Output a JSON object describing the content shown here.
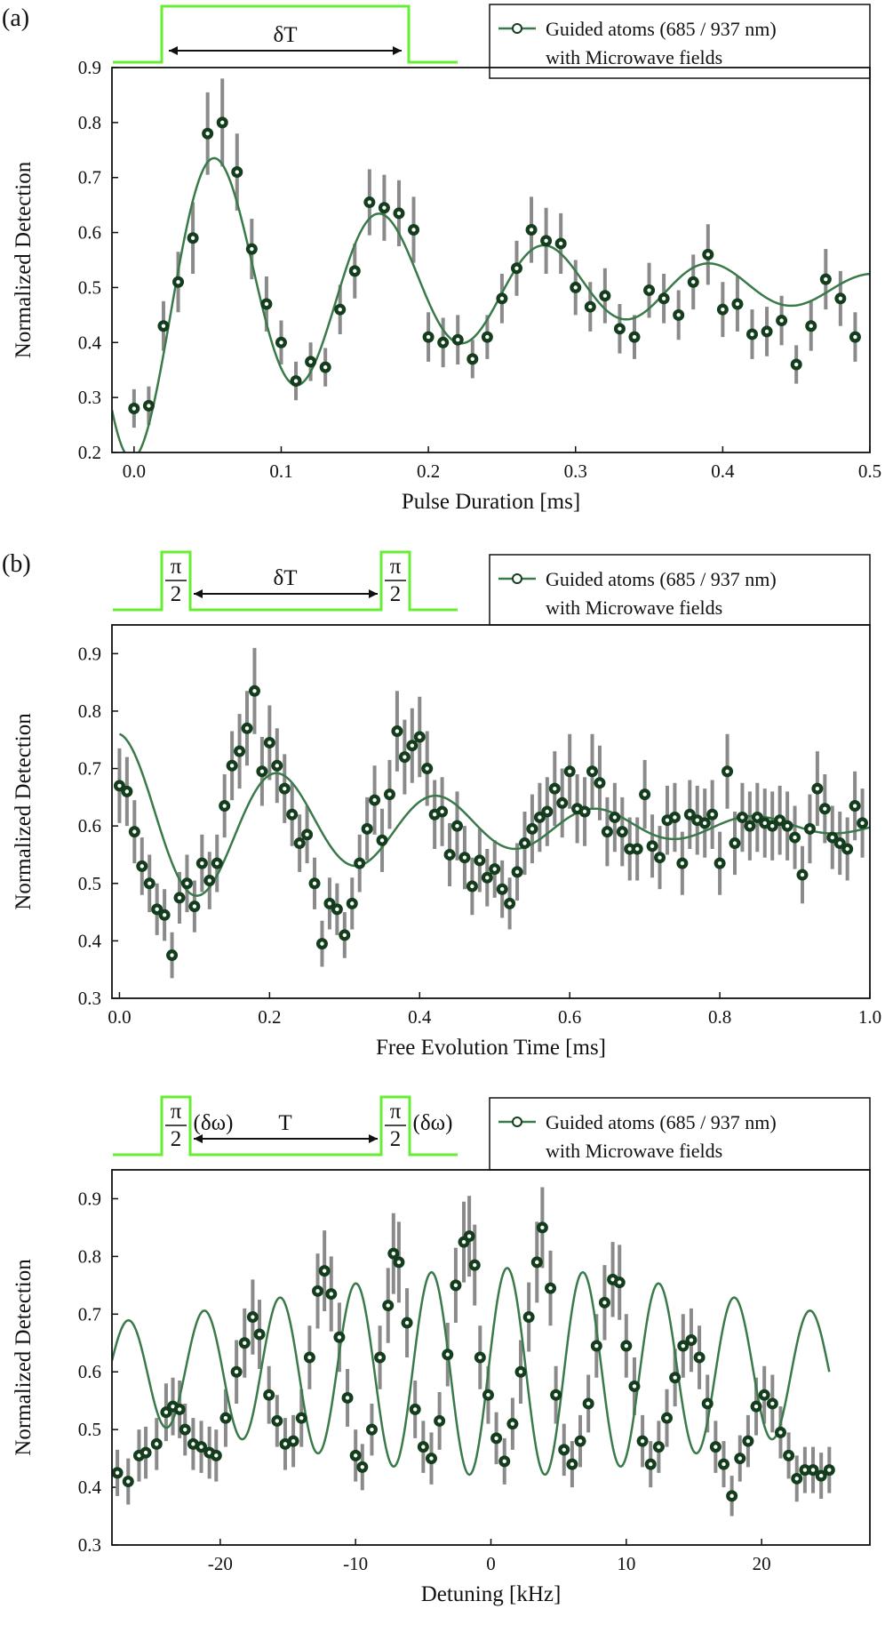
{
  "chart_data": [
    {
      "type": "scatter",
      "panel_label": "(a)",
      "xlabel": "Pulse Duration [ms]",
      "ylabel": "Normalized Detection",
      "xlim": [
        -0.015,
        0.5
      ],
      "ylim": [
        0.2,
        0.9
      ],
      "xticks": [
        0.0,
        0.1,
        0.2,
        0.3,
        0.4,
        0.5
      ],
      "xtick_labels": [
        "0.0",
        "0.1",
        "0.2",
        "0.3",
        "0.4",
        "0.5"
      ],
      "yticks": [
        0.2,
        0.3,
        0.4,
        0.5,
        0.6,
        0.7,
        0.8,
        0.9
      ],
      "ytick_labels": [
        "0.2",
        "0.3",
        "0.4",
        "0.5",
        "0.6",
        "0.7",
        "0.8",
        "0.9"
      ],
      "legend": {
        "line1": "Guided atoms (685 / 937 nm)",
        "line2": "with Microwave fields",
        "position": "top-right"
      },
      "pulse": {
        "label": "δT"
      },
      "fit": {
        "name": "fit",
        "offset": 0.5,
        "amplitude": -0.31,
        "decay_ms": 0.2,
        "period_ms": 0.112,
        "xmin": -0.015,
        "xmax": 0.5
      },
      "series": [
        {
          "name": "Guided atoms (685 / 937 nm) with Microwave fields",
          "x": [
            0.0,
            0.01,
            0.02,
            0.03,
            0.04,
            0.05,
            0.06,
            0.07,
            0.08,
            0.09,
            0.1,
            0.11,
            0.12,
            0.13,
            0.14,
            0.15,
            0.16,
            0.17,
            0.18,
            0.19,
            0.2,
            0.21,
            0.22,
            0.23,
            0.24,
            0.25,
            0.26,
            0.27,
            0.28,
            0.29,
            0.3,
            0.31,
            0.32,
            0.33,
            0.34,
            0.35,
            0.36,
            0.37,
            0.38,
            0.39,
            0.4,
            0.41,
            0.42,
            0.43,
            0.44,
            0.45,
            0.46,
            0.47,
            0.48,
            0.49
          ],
          "y": [
            0.28,
            0.285,
            0.43,
            0.51,
            0.59,
            0.78,
            0.8,
            0.71,
            0.57,
            0.47,
            0.4,
            0.33,
            0.365,
            0.355,
            0.46,
            0.53,
            0.655,
            0.645,
            0.635,
            0.605,
            0.41,
            0.4,
            0.405,
            0.37,
            0.41,
            0.48,
            0.535,
            0.605,
            0.585,
            0.58,
            0.5,
            0.465,
            0.485,
            0.425,
            0.41,
            0.495,
            0.48,
            0.45,
            0.51,
            0.56,
            0.46,
            0.47,
            0.415,
            0.42,
            0.44,
            0.36,
            0.43,
            0.515,
            0.48,
            0.41
          ],
          "err": [
            0.035,
            0.035,
            0.045,
            0.055,
            0.065,
            0.075,
            0.08,
            0.07,
            0.055,
            0.05,
            0.04,
            0.035,
            0.035,
            0.035,
            0.045,
            0.05,
            0.06,
            0.06,
            0.06,
            0.06,
            0.045,
            0.045,
            0.045,
            0.035,
            0.04,
            0.045,
            0.05,
            0.06,
            0.06,
            0.055,
            0.05,
            0.045,
            0.05,
            0.045,
            0.04,
            0.05,
            0.045,
            0.045,
            0.05,
            0.055,
            0.05,
            0.05,
            0.045,
            0.045,
            0.045,
            0.035,
            0.045,
            0.055,
            0.05,
            0.045
          ]
        }
      ]
    },
    {
      "type": "scatter",
      "panel_label": "(b)",
      "xlabel": "Free Evolution Time [ms]",
      "ylabel": "Normalized Detection",
      "xlim": [
        -0.01,
        1.0
      ],
      "ylim": [
        0.3,
        0.95
      ],
      "xticks": [
        0.0,
        0.2,
        0.4,
        0.6,
        0.8,
        1.0
      ],
      "xtick_labels": [
        "0.0",
        "0.2",
        "0.4",
        "0.6",
        "0.8",
        "1.0"
      ],
      "yticks": [
        0.3,
        0.4,
        0.5,
        0.6,
        0.7,
        0.8,
        0.9
      ],
      "ytick_labels": [
        "0.3",
        "0.4",
        "0.5",
        "0.6",
        "0.7",
        "0.8",
        "0.9"
      ],
      "legend": {
        "line1": "Guided atoms (685 / 937 nm)",
        "line2": "with Microwave fields",
        "position": "top-right"
      },
      "pulse": {
        "label": "δT",
        "pi_num": "π",
        "pi_den": "2"
      },
      "fit": {
        "name": "fit",
        "offset": 0.6,
        "amplitude": 0.16,
        "decay_ms": 0.38,
        "period_ms": 0.212,
        "xmin": 0.0,
        "xmax": 1.0
      },
      "series": [
        {
          "name": "Guided atoms (685 / 937 nm) with Microwave fields",
          "x": [
            0.0,
            0.01,
            0.02,
            0.03,
            0.04,
            0.05,
            0.06,
            0.07,
            0.08,
            0.09,
            0.1,
            0.11,
            0.12,
            0.13,
            0.14,
            0.15,
            0.16,
            0.17,
            0.18,
            0.19,
            0.2,
            0.21,
            0.22,
            0.23,
            0.24,
            0.25,
            0.26,
            0.27,
            0.28,
            0.29,
            0.3,
            0.31,
            0.32,
            0.33,
            0.34,
            0.35,
            0.36,
            0.37,
            0.38,
            0.39,
            0.4,
            0.41,
            0.42,
            0.43,
            0.44,
            0.45,
            0.46,
            0.47,
            0.48,
            0.49,
            0.5,
            0.51,
            0.52,
            0.53,
            0.54,
            0.55,
            0.56,
            0.57,
            0.58,
            0.59,
            0.6,
            0.61,
            0.62,
            0.63,
            0.64,
            0.65,
            0.66,
            0.67,
            0.68,
            0.69,
            0.7,
            0.71,
            0.72,
            0.73,
            0.74,
            0.75,
            0.76,
            0.77,
            0.78,
            0.79,
            0.8,
            0.81,
            0.82,
            0.83,
            0.84,
            0.85,
            0.86,
            0.87,
            0.88,
            0.89,
            0.9,
            0.91,
            0.92,
            0.93,
            0.94,
            0.95,
            0.96,
            0.97,
            0.98,
            0.99
          ],
          "y": [
            0.67,
            0.66,
            0.59,
            0.53,
            0.5,
            0.455,
            0.445,
            0.375,
            0.475,
            0.5,
            0.46,
            0.535,
            0.505,
            0.535,
            0.635,
            0.705,
            0.73,
            0.77,
            0.835,
            0.695,
            0.745,
            0.705,
            0.665,
            0.62,
            0.57,
            0.585,
            0.5,
            0.395,
            0.465,
            0.455,
            0.41,
            0.465,
            0.535,
            0.595,
            0.645,
            0.575,
            0.655,
            0.765,
            0.72,
            0.74,
            0.755,
            0.7,
            0.62,
            0.625,
            0.55,
            0.6,
            0.545,
            0.495,
            0.54,
            0.51,
            0.525,
            0.49,
            0.465,
            0.52,
            0.57,
            0.595,
            0.615,
            0.625,
            0.665,
            0.64,
            0.695,
            0.63,
            0.625,
            0.695,
            0.675,
            0.59,
            0.615,
            0.59,
            0.56,
            0.56,
            0.655,
            0.565,
            0.545,
            0.61,
            0.615,
            0.535,
            0.62,
            0.61,
            0.605,
            0.62,
            0.535,
            0.695,
            0.57,
            0.615,
            0.6,
            0.615,
            0.605,
            0.6,
            0.61,
            0.6,
            0.58,
            0.515,
            0.595,
            0.665,
            0.63,
            0.58,
            0.57,
            0.56,
            0.635,
            0.605
          ],
          "err": [
            0.065,
            0.06,
            0.055,
            0.05,
            0.05,
            0.045,
            0.045,
            0.04,
            0.045,
            0.05,
            0.045,
            0.05,
            0.05,
            0.05,
            0.055,
            0.06,
            0.065,
            0.065,
            0.075,
            0.06,
            0.065,
            0.065,
            0.06,
            0.055,
            0.05,
            0.05,
            0.045,
            0.04,
            0.045,
            0.045,
            0.04,
            0.045,
            0.05,
            0.055,
            0.06,
            0.055,
            0.06,
            0.07,
            0.065,
            0.065,
            0.07,
            0.065,
            0.06,
            0.06,
            0.055,
            0.06,
            0.055,
            0.05,
            0.055,
            0.05,
            0.05,
            0.05,
            0.045,
            0.05,
            0.055,
            0.06,
            0.06,
            0.06,
            0.065,
            0.06,
            0.065,
            0.06,
            0.06,
            0.065,
            0.065,
            0.06,
            0.06,
            0.06,
            0.055,
            0.055,
            0.06,
            0.055,
            0.055,
            0.06,
            0.06,
            0.055,
            0.06,
            0.06,
            0.06,
            0.06,
            0.055,
            0.065,
            0.055,
            0.06,
            0.06,
            0.06,
            0.06,
            0.06,
            0.06,
            0.06,
            0.055,
            0.05,
            0.06,
            0.065,
            0.06,
            0.055,
            0.055,
            0.055,
            0.06,
            0.06
          ]
        }
      ]
    },
    {
      "type": "scatter",
      "panel_label": "",
      "xlabel": "Detuning [kHz]",
      "ylabel": "Normalized Detection",
      "xlim": [
        -28,
        28
      ],
      "ylim": [
        0.3,
        0.95
      ],
      "xticks": [
        -20,
        -10,
        0,
        10,
        20
      ],
      "xtick_labels": [
        "-20",
        "-10",
        "0",
        "10",
        "20"
      ],
      "yticks": [
        0.3,
        0.4,
        0.5,
        0.6,
        0.7,
        0.8,
        0.9
      ],
      "ytick_labels": [
        "0.3",
        "0.4",
        "0.5",
        "0.6",
        "0.7",
        "0.8",
        "0.9"
      ],
      "legend": {
        "line1": "Guided atoms (685 / 937 nm)",
        "line2": "with Microwave fields",
        "position": "top-right"
      },
      "pulse": {
        "label": "T",
        "pi_num": "π",
        "pi_den": "2",
        "omega": "(δω)"
      },
      "fit": {
        "name": "fit",
        "offset": 0.6,
        "center_khz": 1.2,
        "period_khz": 5.6,
        "envelope_sigma_khz": 15,
        "amp_outer": 0.14,
        "amp_inner": 0.36,
        "xmin": -28,
        "xmax": 25
      },
      "series": [
        {
          "name": "Guided atoms (685 / 937 nm) with Microwave fields",
          "x": [
            -27.6,
            -26.8,
            -26,
            -25.5,
            -24.7,
            -24,
            -23.5,
            -23,
            -22.6,
            -22,
            -21.4,
            -20.8,
            -20.3,
            -19.6,
            -18.8,
            -18.2,
            -17.6,
            -17.1,
            -16.4,
            -15.8,
            -15.2,
            -14.6,
            -14,
            -13.4,
            -12.8,
            -12.3,
            -11.8,
            -11.2,
            -10.6,
            -10,
            -9.5,
            -8.8,
            -8.2,
            -7.6,
            -7.2,
            -6.8,
            -6.2,
            -5.6,
            -5,
            -4.4,
            -3.8,
            -3.2,
            -2.6,
            -2,
            -1.6,
            -1.2,
            -0.8,
            -0.2,
            0.4,
            1,
            1.6,
            2.2,
            2.8,
            3.4,
            3.8,
            4.4,
            4.8,
            5.4,
            6,
            6.6,
            7.2,
            7.8,
            8.4,
            9,
            9.5,
            10,
            10.6,
            11.2,
            11.8,
            12.4,
            13,
            13.6,
            14.2,
            14.8,
            15.4,
            16,
            16.6,
            17.2,
            17.8,
            18.4,
            19,
            19.6,
            20.2,
            20.8,
            21.4,
            22,
            22.6,
            23.2,
            23.8,
            24.4,
            25
          ],
          "y": [
            0.425,
            0.41,
            0.455,
            0.46,
            0.475,
            0.53,
            0.54,
            0.535,
            0.5,
            0.475,
            0.47,
            0.46,
            0.455,
            0.52,
            0.6,
            0.65,
            0.695,
            0.665,
            0.56,
            0.515,
            0.475,
            0.48,
            0.52,
            0.625,
            0.74,
            0.775,
            0.735,
            0.66,
            0.555,
            0.455,
            0.435,
            0.5,
            0.625,
            0.715,
            0.805,
            0.79,
            0.685,
            0.535,
            0.47,
            0.45,
            0.515,
            0.63,
            0.75,
            0.825,
            0.835,
            0.785,
            0.625,
            0.56,
            0.485,
            0.445,
            0.51,
            0.6,
            0.695,
            0.79,
            0.85,
            0.745,
            0.56,
            0.465,
            0.44,
            0.48,
            0.545,
            0.645,
            0.72,
            0.76,
            0.755,
            0.645,
            0.575,
            0.48,
            0.44,
            0.47,
            0.52,
            0.59,
            0.645,
            0.655,
            0.625,
            0.545,
            0.47,
            0.44,
            0.385,
            0.45,
            0.48,
            0.54,
            0.56,
            0.545,
            0.495,
            0.455,
            0.415,
            0.43,
            0.43,
            0.42,
            0.43
          ],
          "err": [
            0.04,
            0.04,
            0.045,
            0.045,
            0.045,
            0.05,
            0.05,
            0.05,
            0.045,
            0.045,
            0.045,
            0.045,
            0.045,
            0.05,
            0.055,
            0.06,
            0.065,
            0.06,
            0.05,
            0.045,
            0.045,
            0.045,
            0.05,
            0.055,
            0.065,
            0.07,
            0.065,
            0.06,
            0.05,
            0.045,
            0.04,
            0.045,
            0.055,
            0.065,
            0.07,
            0.07,
            0.06,
            0.05,
            0.045,
            0.045,
            0.05,
            0.055,
            0.065,
            0.07,
            0.07,
            0.07,
            0.055,
            0.05,
            0.045,
            0.04,
            0.045,
            0.055,
            0.06,
            0.07,
            0.07,
            0.065,
            0.05,
            0.045,
            0.04,
            0.045,
            0.05,
            0.055,
            0.065,
            0.065,
            0.065,
            0.055,
            0.05,
            0.045,
            0.04,
            0.045,
            0.05,
            0.05,
            0.055,
            0.055,
            0.055,
            0.05,
            0.045,
            0.04,
            0.035,
            0.04,
            0.045,
            0.05,
            0.05,
            0.05,
            0.045,
            0.04,
            0.04,
            0.04,
            0.04,
            0.04,
            0.04
          ]
        }
      ]
    }
  ],
  "colors": {
    "fit_line": "#3a7a4a",
    "marker_fill": "#133d1c",
    "marker_center": "#ffffff",
    "error_bar": "#8a8a8a",
    "pulse": "#66ee33",
    "axis": "#111111"
  }
}
